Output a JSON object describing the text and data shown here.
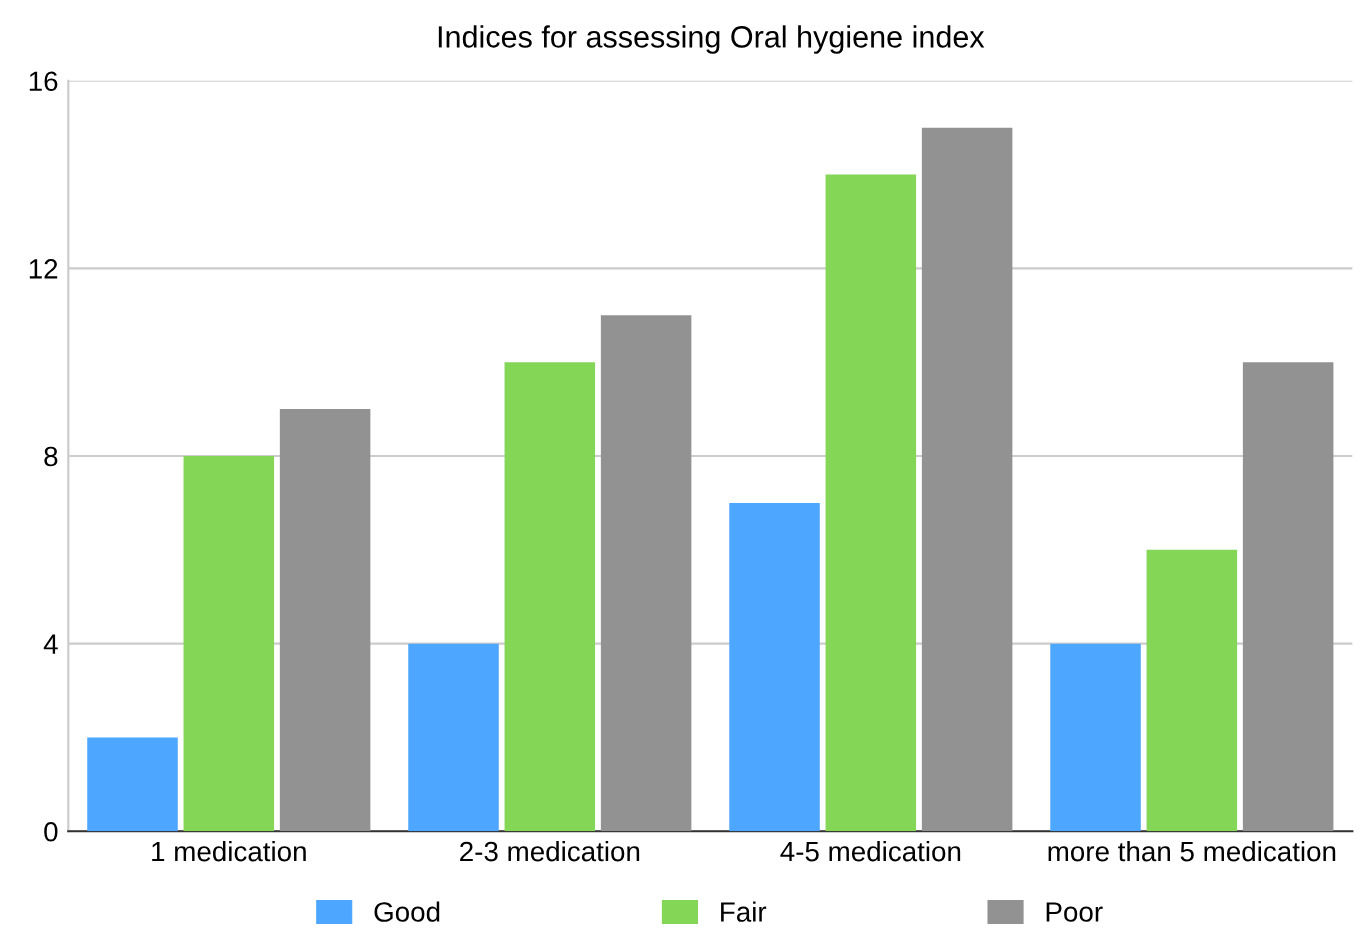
{
  "chart_data": {
    "type": "bar",
    "title": "Indices for assessing Oral hygiene index",
    "categories": [
      "1 medication",
      "2-3 medication",
      "4-5 medication",
      "more than 5 medication"
    ],
    "series": [
      {
        "name": "Good",
        "color": "#4da6ff",
        "values": [
          2,
          4,
          7,
          4
        ]
      },
      {
        "name": "Fair",
        "color": "#84d657",
        "values": [
          8,
          10,
          14,
          6
        ]
      },
      {
        "name": "Poor",
        "color": "#929292",
        "values": [
          9,
          11,
          15,
          10
        ]
      }
    ],
    "ylim": [
      0,
      16
    ],
    "yticks": [
      0,
      4,
      8,
      12,
      16
    ],
    "grid": "y",
    "legend": "bottom"
  }
}
